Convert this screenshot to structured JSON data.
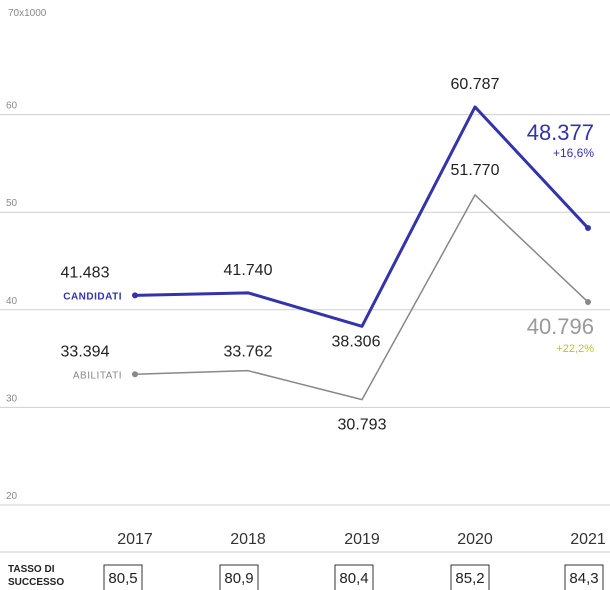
{
  "chart_data": {
    "type": "line",
    "unit_label": "70x1000",
    "y_ticks": [
      20,
      30,
      40,
      50,
      60
    ],
    "ylim": [
      20,
      70
    ],
    "x": [
      "2017",
      "2018",
      "2019",
      "2020",
      "2021"
    ],
    "series": [
      {
        "name": "CANDIDATI",
        "color": "#3333aa",
        "values": [
          41.483,
          41.74,
          38.306,
          60.787,
          48.377
        ],
        "value_labels": [
          "41.483",
          "41.740",
          "38.306",
          "60.787",
          "48.377"
        ],
        "change_label": "+16,6%"
      },
      {
        "name": "ABILITATI",
        "color": "#888888",
        "values": [
          33.394,
          33.762,
          30.793,
          51.77,
          40.796
        ],
        "value_labels": [
          "33.394",
          "33.762",
          "30.793",
          "51.770",
          "40.796"
        ],
        "change_label": "+22,2%"
      }
    ],
    "success_rate": {
      "label_line1": "TASSO DI",
      "label_line2": "SUCCESSO",
      "values": [
        "80,5",
        "80,9",
        "80,4",
        "85,2",
        "84,3"
      ]
    },
    "colors": {
      "candidati": "#3333aa",
      "abilitati": "#888888",
      "accent_green": "#b8c43a",
      "grid": "#cfcfcf"
    },
    "grid": true
  }
}
